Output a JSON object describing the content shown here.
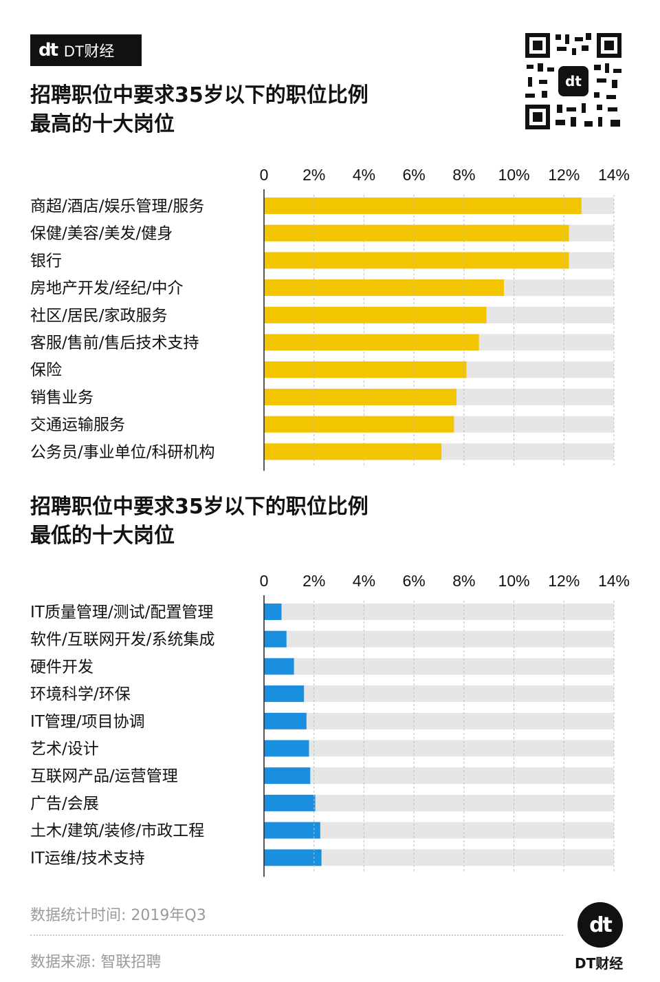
{
  "brand": {
    "badge_logo": "dt",
    "badge_text": "DT财经",
    "footer_logo": "dt",
    "footer_text": "DT财经"
  },
  "colors": {
    "top_bar": "#f2c500",
    "bottom_bar": "#1a8fe0",
    "track": "#e6e6e6",
    "axis": "#222222",
    "grid": "#bdbdbd"
  },
  "chart_data": [
    {
      "type": "bar",
      "orientation": "horizontal",
      "title": "招聘职位中要求35岁以下的职位比例最高的十大岗位",
      "title_lines": [
        "招聘职位中要求35岁以下的职位比例",
        "最高的十大岗位"
      ],
      "xlim": [
        0,
        14
      ],
      "tick_labels": [
        "0",
        "2%",
        "4%",
        "6%",
        "8%",
        "10%",
        "12%",
        "14%"
      ],
      "categories": [
        "商超/酒店/娱乐管理/服务",
        "保健/美容/美发/健身",
        "银行",
        "房地产开发/经纪/中介",
        "社区/居民/家政服务",
        "客服/售前/售后技术支持",
        "保险",
        "销售业务",
        "交通运输服务",
        "公务员/事业单位/科研机构"
      ],
      "values": [
        12.7,
        12.2,
        12.2,
        9.6,
        8.9,
        8.6,
        8.1,
        7.7,
        7.6,
        7.1
      ]
    },
    {
      "type": "bar",
      "orientation": "horizontal",
      "title": "招聘职位中要求35岁以下的职位比例最低的十大岗位",
      "title_lines": [
        "招聘职位中要求35岁以下的职位比例",
        "最低的十大岗位"
      ],
      "xlim": [
        0,
        14
      ],
      "tick_labels": [
        "0",
        "2%",
        "4%",
        "6%",
        "8%",
        "10%",
        "12%",
        "14%"
      ],
      "categories": [
        "IT质量管理/测试/配置管理",
        "软件/互联网开发/系统集成",
        "硬件开发",
        "环境科学/环保",
        "IT管理/项目协调",
        "艺术/设计",
        "互联网产品/运营管理",
        "广告/会展",
        "土木/建筑/装修/市政工程",
        "IT运维/技术支持"
      ],
      "values": [
        0.7,
        0.9,
        1.2,
        1.6,
        1.7,
        1.8,
        1.85,
        2.05,
        2.25,
        2.3
      ]
    }
  ],
  "footer": {
    "stat_time": "数据统计时间: 2019年Q3",
    "source": "数据来源: 智联招聘"
  }
}
